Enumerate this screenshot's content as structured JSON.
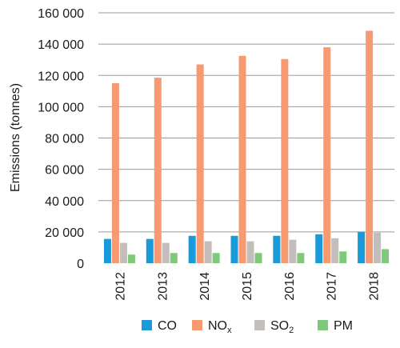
{
  "chart_data": {
    "type": "bar",
    "ylabel": "Emissions (tonnes)",
    "xlabel": "",
    "ylim": [
      0,
      160000
    ],
    "yticks": [
      0,
      20000,
      40000,
      60000,
      80000,
      100000,
      120000,
      140000,
      160000
    ],
    "ytick_labels": [
      "0",
      "20 000",
      "40 000",
      "60 000",
      "80 000",
      "100 000",
      "120 000",
      "140 000",
      "160 000"
    ],
    "categories": [
      "2012",
      "2013",
      "2014",
      "2015",
      "2016",
      "2017",
      "2018"
    ],
    "grid": "horizontal",
    "legend_position": "bottom",
    "series": [
      {
        "name": "CO",
        "name_main": "CO",
        "name_sub": "",
        "color": "#1a9ad8",
        "values": [
          15500,
          15500,
          17500,
          17500,
          17500,
          18500,
          20000
        ]
      },
      {
        "name": "NOx",
        "name_main": "NO",
        "name_sub": "x",
        "color": "#f79a72",
        "values": [
          115000,
          118500,
          127000,
          132500,
          130500,
          138000,
          148500
        ]
      },
      {
        "name": "SO2",
        "name_main": "SO",
        "name_sub": "2",
        "color": "#c3bebc",
        "values": [
          13000,
          13000,
          14000,
          14000,
          15000,
          16000,
          19500
        ]
      },
      {
        "name": "PM",
        "name_main": "PM",
        "name_sub": "",
        "color": "#7fc97a",
        "values": [
          5500,
          6500,
          6500,
          6500,
          6500,
          7500,
          9000
        ]
      }
    ]
  }
}
